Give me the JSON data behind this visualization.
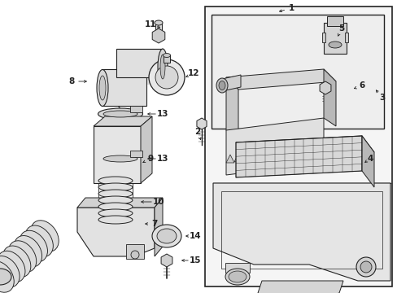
{
  "bg_color": "#ffffff",
  "line_color": "#222222",
  "gray_fill": "#e8e8e8",
  "light_fill": "#f2f2f2",
  "figsize": [
    4.89,
    3.6
  ],
  "dpi": 100
}
